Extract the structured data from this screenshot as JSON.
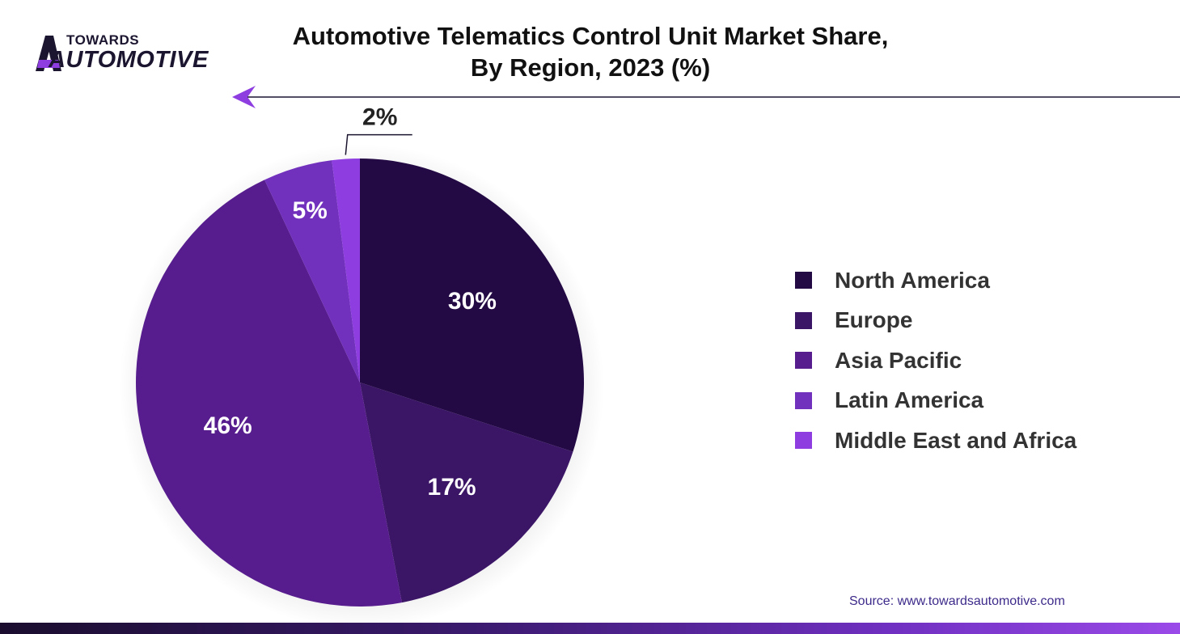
{
  "brand": {
    "line1": "TOWARDS",
    "line2": "AUTOMOTIVE",
    "logo_icon": "towards-automotive-logo-mark"
  },
  "title": {
    "line1": "Automotive Telematics Control Unit Market Share,",
    "line2": "By Region, 2023 (%)"
  },
  "source": "Source: www.towardsautomotive.com",
  "colors": {
    "north_america": "#230a45",
    "europe": "#3b1566",
    "asia_pacific": "#571d8e",
    "latin_america": "#7231bd",
    "middle_east_africa": "#8e3ee0",
    "accent": "#8e3ee0",
    "rule": "#1c1530"
  },
  "chart_data": {
    "type": "pie",
    "title": "Automotive Telematics Control Unit Market Share, By Region, 2023 (%)",
    "legend_position": "right",
    "slices": [
      {
        "name": "North America",
        "value": 30,
        "label": "30%",
        "color": "#230a45"
      },
      {
        "name": "Europe",
        "value": 17,
        "label": "17%",
        "color": "#3b1566"
      },
      {
        "name": "Asia Pacific",
        "value": 46,
        "label": "46%",
        "color": "#571d8e"
      },
      {
        "name": "Latin America",
        "value": 5,
        "label": "5%",
        "color": "#7231bd"
      },
      {
        "name": "Middle East and Africa",
        "value": 2,
        "label": "2%",
        "color": "#8e3ee0"
      }
    ]
  }
}
